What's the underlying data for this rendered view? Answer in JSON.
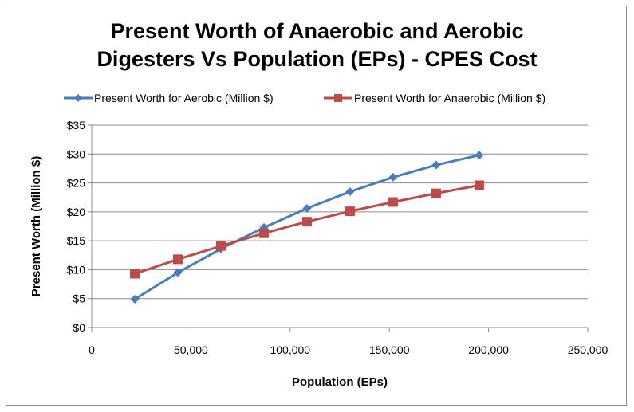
{
  "chart_data": {
    "type": "line",
    "title": "Present Worth of Anaerobic and Aerobic Digesters Vs  Population (EPs) - CPES Cost",
    "title_lines": [
      "Present Worth of Anaerobic and Aerobic",
      "Digesters Vs  Population (EPs) - CPES Cost"
    ],
    "xlabel": "Population (EPs)",
    "ylabel": "Present Worth (Million $)",
    "xlim": [
      0,
      250000
    ],
    "ylim": [
      0,
      35
    ],
    "x_ticks": [
      0,
      50000,
      100000,
      150000,
      200000,
      250000
    ],
    "x_tick_labels": [
      "0",
      "50,000",
      "100,000",
      "150,000",
      "200,000",
      "250,000"
    ],
    "y_ticks": [
      0,
      5,
      10,
      15,
      20,
      25,
      30,
      35
    ],
    "y_tick_labels": [
      "$0",
      "$5",
      "$10",
      "$15",
      "$20",
      "$25",
      "$30",
      "$35"
    ],
    "grid": "horizontal",
    "legend_position": "top",
    "x": [
      21700,
      43400,
      65100,
      86800,
      108500,
      130200,
      151900,
      173600,
      195300
    ],
    "series": [
      {
        "name": "Present Worth for Aerobic (Million $)",
        "color": "#4a7ebb",
        "marker": "diamond",
        "values": [
          4.9,
          9.5,
          13.6,
          17.3,
          20.6,
          23.5,
          26.0,
          28.1,
          29.8
        ]
      },
      {
        "name": "Present Worth for Anaerobic (Million $)",
        "color": "#be4b48",
        "marker": "square",
        "values": [
          9.3,
          11.8,
          14.1,
          16.3,
          18.3,
          20.1,
          21.7,
          23.2,
          24.6
        ]
      }
    ]
  }
}
